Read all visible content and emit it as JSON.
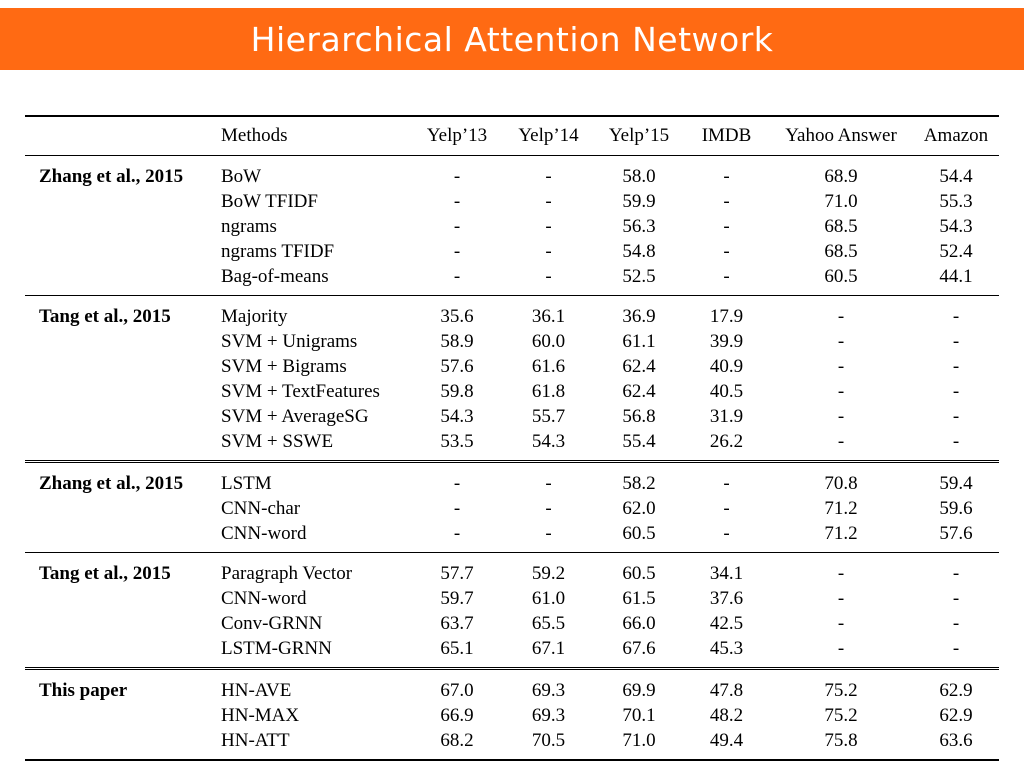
{
  "slide": {
    "title": "Hierarchical Attention Network"
  },
  "table": {
    "headers": [
      "Methods",
      "Yelp’13",
      "Yelp’14",
      "Yelp’15",
      "IMDB",
      "Yahoo Answer",
      "Amazon"
    ],
    "groups": [
      {
        "source": "Zhang et al., 2015",
        "rows": [
          [
            "BoW",
            "-",
            "-",
            "58.0",
            "-",
            "68.9",
            "54.4"
          ],
          [
            "BoW TFIDF",
            "-",
            "-",
            "59.9",
            "-",
            "71.0",
            "55.3"
          ],
          [
            "ngrams",
            "-",
            "-",
            "56.3",
            "-",
            "68.5",
            "54.3"
          ],
          [
            "ngrams TFIDF",
            "-",
            "-",
            "54.8",
            "-",
            "68.5",
            "52.4"
          ],
          [
            "Bag-of-means",
            "-",
            "-",
            "52.5",
            "-",
            "60.5",
            "44.1"
          ]
        ]
      },
      {
        "source": "Tang et al., 2015",
        "rows": [
          [
            "Majority",
            "35.6",
            "36.1",
            "36.9",
            "17.9",
            "-",
            "-"
          ],
          [
            "SVM + Unigrams",
            "58.9",
            "60.0",
            "61.1",
            "39.9",
            "-",
            "-"
          ],
          [
            "SVM + Bigrams",
            "57.6",
            "61.6",
            "62.4",
            "40.9",
            "-",
            "-"
          ],
          [
            "SVM + TextFeatures",
            "59.8",
            "61.8",
            "62.4",
            "40.5",
            "-",
            "-"
          ],
          [
            "SVM + AverageSG",
            "54.3",
            "55.7",
            "56.8",
            "31.9",
            "-",
            "-"
          ],
          [
            "SVM + SSWE",
            "53.5",
            "54.3",
            "55.4",
            "26.2",
            "-",
            "-"
          ]
        ]
      },
      {
        "source": "Zhang et al., 2015",
        "rows": [
          [
            "LSTM",
            "-",
            "-",
            "58.2",
            "-",
            "70.8",
            "59.4"
          ],
          [
            "CNN-char",
            "-",
            "-",
            "62.0",
            "-",
            "71.2",
            "59.6"
          ],
          [
            "CNN-word",
            "-",
            "-",
            "60.5",
            "-",
            "71.2",
            "57.6"
          ]
        ]
      },
      {
        "source": "Tang et al., 2015",
        "rows": [
          [
            "Paragraph Vector",
            "57.7",
            "59.2",
            "60.5",
            "34.1",
            "-",
            "-"
          ],
          [
            "CNN-word",
            "59.7",
            "61.0",
            "61.5",
            "37.6",
            "-",
            "-"
          ],
          [
            "Conv-GRNN",
            "63.7",
            "65.5",
            "66.0",
            "42.5",
            "-",
            "-"
          ],
          [
            "LSTM-GRNN",
            "65.1",
            "67.1",
            "67.6",
            "45.3",
            "-",
            "-"
          ]
        ]
      },
      {
        "source": "This paper",
        "rows": [
          [
            "HN-AVE",
            "67.0",
            "69.3",
            "69.9",
            "47.8",
            "75.2",
            "62.9"
          ],
          [
            "HN-MAX",
            "66.9",
            "69.3",
            "70.1",
            "48.2",
            "75.2",
            "62.9"
          ],
          [
            "HN-ATT",
            "68.2",
            "70.5",
            "71.0",
            "49.4",
            "75.8",
            "63.6"
          ]
        ]
      }
    ]
  }
}
